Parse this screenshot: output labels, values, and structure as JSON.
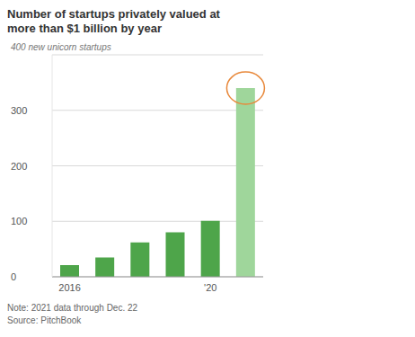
{
  "chart_data": {
    "type": "bar",
    "title": "Number of startups privately valued at more than $1 billion by year",
    "categories": [
      "2016",
      null,
      null,
      null,
      "'20",
      null
    ],
    "values": [
      21,
      35,
      62,
      80,
      101,
      340
    ],
    "colors": [
      "#4ea54a",
      "#4ea54a",
      "#4ea54a",
      "#4ea54a",
      "#4ea54a",
      "#9fd69b"
    ],
    "ylim": [
      0,
      400
    ],
    "yticks": [
      0,
      100,
      200,
      300,
      {
        "value": 400,
        "label": "400 new unicorn startups"
      }
    ],
    "grid": true,
    "notes": [
      "Note: 2021 data through Dec. 22",
      "Source: PitchBook"
    ]
  }
}
